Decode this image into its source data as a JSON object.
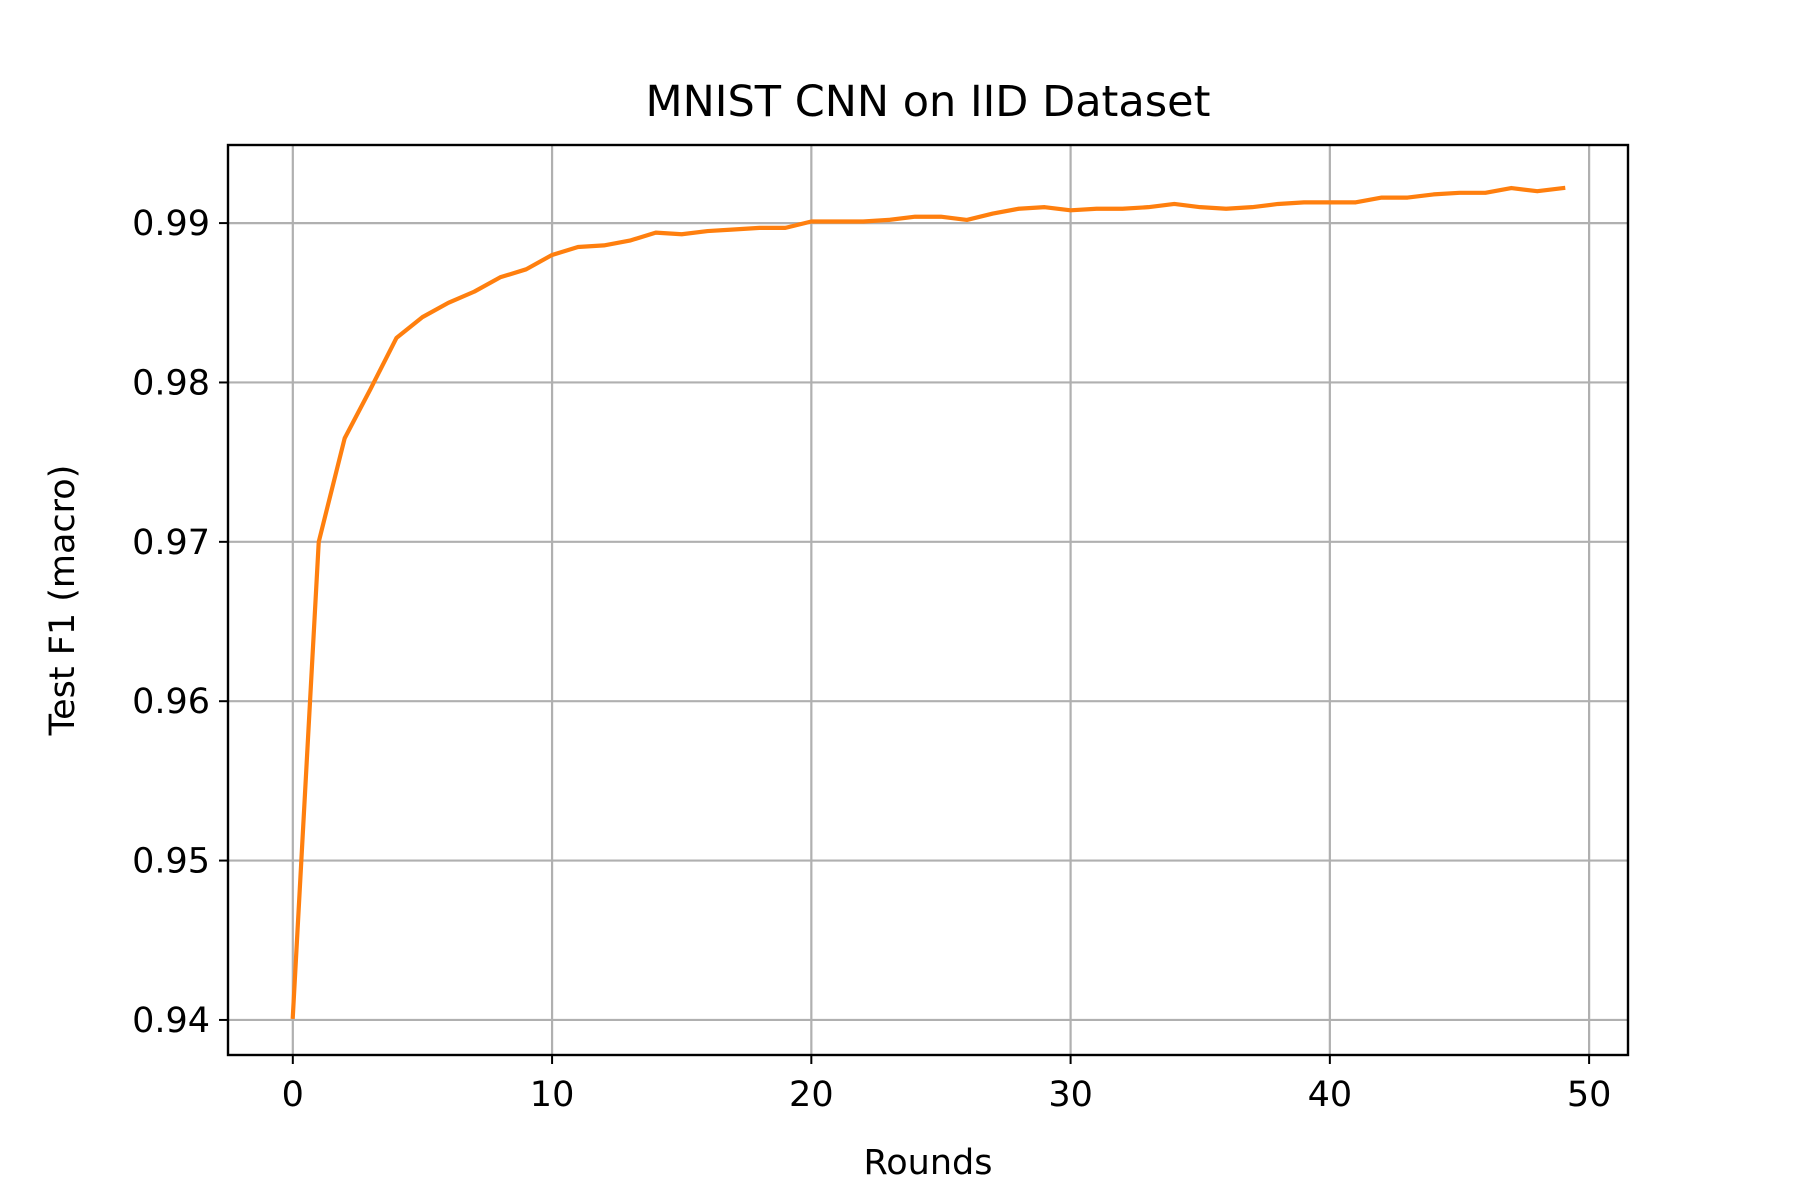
{
  "chart_data": {
    "type": "line",
    "title": "MNIST CNN on IID Dataset",
    "xlabel": "Rounds",
    "ylabel": "Test F1 (macro)",
    "xlim": [
      -2.5,
      51.5
    ],
    "ylim": [
      0.9378,
      0.9949
    ],
    "xticks": [
      0,
      10,
      20,
      30,
      40,
      50
    ],
    "xtick_labels": [
      "0",
      "10",
      "20",
      "30",
      "40",
      "50"
    ],
    "yticks": [
      0.94,
      0.95,
      0.96,
      0.97,
      0.98,
      0.99
    ],
    "ytick_labels": [
      "0.94",
      "0.95",
      "0.96",
      "0.97",
      "0.98",
      "0.99"
    ],
    "grid": true,
    "series": [
      {
        "color": "#ff7f0e",
        "x": [
          0,
          1,
          2,
          3,
          4,
          5,
          6,
          7,
          8,
          9,
          10,
          11,
          12,
          13,
          14,
          15,
          16,
          17,
          18,
          19,
          20,
          21,
          22,
          23,
          24,
          25,
          26,
          27,
          28,
          29,
          30,
          31,
          32,
          33,
          34,
          35,
          36,
          37,
          38,
          39,
          40,
          41,
          42,
          43,
          44,
          45,
          46,
          47,
          48,
          49
        ],
        "y": [
          0.9402,
          0.97,
          0.9765,
          0.9796,
          0.9828,
          0.9841,
          0.985,
          0.9857,
          0.9866,
          0.9871,
          0.988,
          0.9885,
          0.9886,
          0.9889,
          0.9894,
          0.9893,
          0.9895,
          0.9896,
          0.9897,
          0.9897,
          0.9901,
          0.9901,
          0.9901,
          0.9902,
          0.9904,
          0.9904,
          0.9902,
          0.9906,
          0.9909,
          0.991,
          0.9908,
          0.9909,
          0.9909,
          0.991,
          0.9912,
          0.991,
          0.9909,
          0.991,
          0.9912,
          0.9913,
          0.9913,
          0.9913,
          0.9916,
          0.9916,
          0.9918,
          0.9919,
          0.9919,
          0.9922,
          0.992,
          0.9922
        ]
      }
    ]
  }
}
